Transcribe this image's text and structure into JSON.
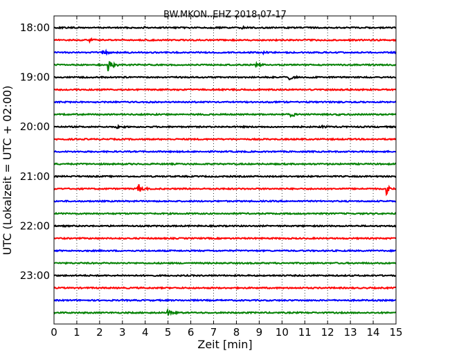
{
  "chart_data": {
    "type": "line",
    "title": "BW.MKON..EHZ 2018-07-17",
    "xlabel": "Zeit  [min]",
    "ylabel": "UTC (Lokalzeit = UTC + 02:00)",
    "xlim": [
      0,
      15
    ],
    "x_ticks": [
      "0",
      "1",
      "2",
      "3",
      "4",
      "5",
      "6",
      "7",
      "8",
      "9",
      "10",
      "11",
      "12",
      "13",
      "14",
      "15"
    ],
    "y_ticks": [
      "18:00",
      "19:00",
      "20:00",
      "21:00",
      "22:00",
      "23:00"
    ],
    "grid": "vertical dotted",
    "series_colors": [
      "#000000",
      "#ff0000",
      "#0000ff",
      "#008000"
    ],
    "series": [
      {
        "start": "18:00",
        "events": [
          {
            "t": 4.0,
            "amp": 0.15
          },
          {
            "t": 8.3,
            "amp": 0.12
          }
        ]
      },
      {
        "start": "18:15",
        "events": [
          {
            "t": 1.6,
            "amp": 0.3
          }
        ]
      },
      {
        "start": "18:30",
        "events": [
          {
            "t": 2.1,
            "amp": 0.8
          },
          {
            "t": 9.2,
            "amp": 0.35
          }
        ]
      },
      {
        "start": "18:45",
        "events": [
          {
            "t": 2.4,
            "amp": 1.1
          },
          {
            "t": 8.9,
            "amp": 0.25
          }
        ]
      },
      {
        "start": "19:00",
        "events": [
          {
            "t": 10.3,
            "amp": 0.55
          }
        ]
      },
      {
        "start": "19:15",
        "events": []
      },
      {
        "start": "19:30",
        "events": []
      },
      {
        "start": "19:45",
        "events": [
          {
            "t": 10.4,
            "amp": 0.6
          },
          {
            "t": 12.4,
            "amp": 0.2
          }
        ]
      },
      {
        "start": "20:00",
        "events": [
          {
            "t": 2.8,
            "amp": 0.25
          },
          {
            "t": 11.7,
            "amp": 0.2
          }
        ]
      },
      {
        "start": "20:15",
        "events": []
      },
      {
        "start": "20:30",
        "events": []
      },
      {
        "start": "20:45",
        "events": []
      },
      {
        "start": "21:00",
        "events": []
      },
      {
        "start": "21:15",
        "events": [
          {
            "t": 3.7,
            "amp": 0.85
          },
          {
            "t": 14.6,
            "amp": 0.85
          }
        ]
      },
      {
        "start": "21:30",
        "events": []
      },
      {
        "start": "21:45",
        "events": []
      },
      {
        "start": "22:00",
        "events": []
      },
      {
        "start": "22:15",
        "events": []
      },
      {
        "start": "22:30",
        "events": []
      },
      {
        "start": "22:45",
        "events": []
      },
      {
        "start": "23:00",
        "events": []
      },
      {
        "start": "23:15",
        "events": []
      },
      {
        "start": "23:30",
        "events": []
      },
      {
        "start": "23:45",
        "events": [
          {
            "t": 5.0,
            "amp": 0.45
          }
        ]
      }
    ]
  }
}
